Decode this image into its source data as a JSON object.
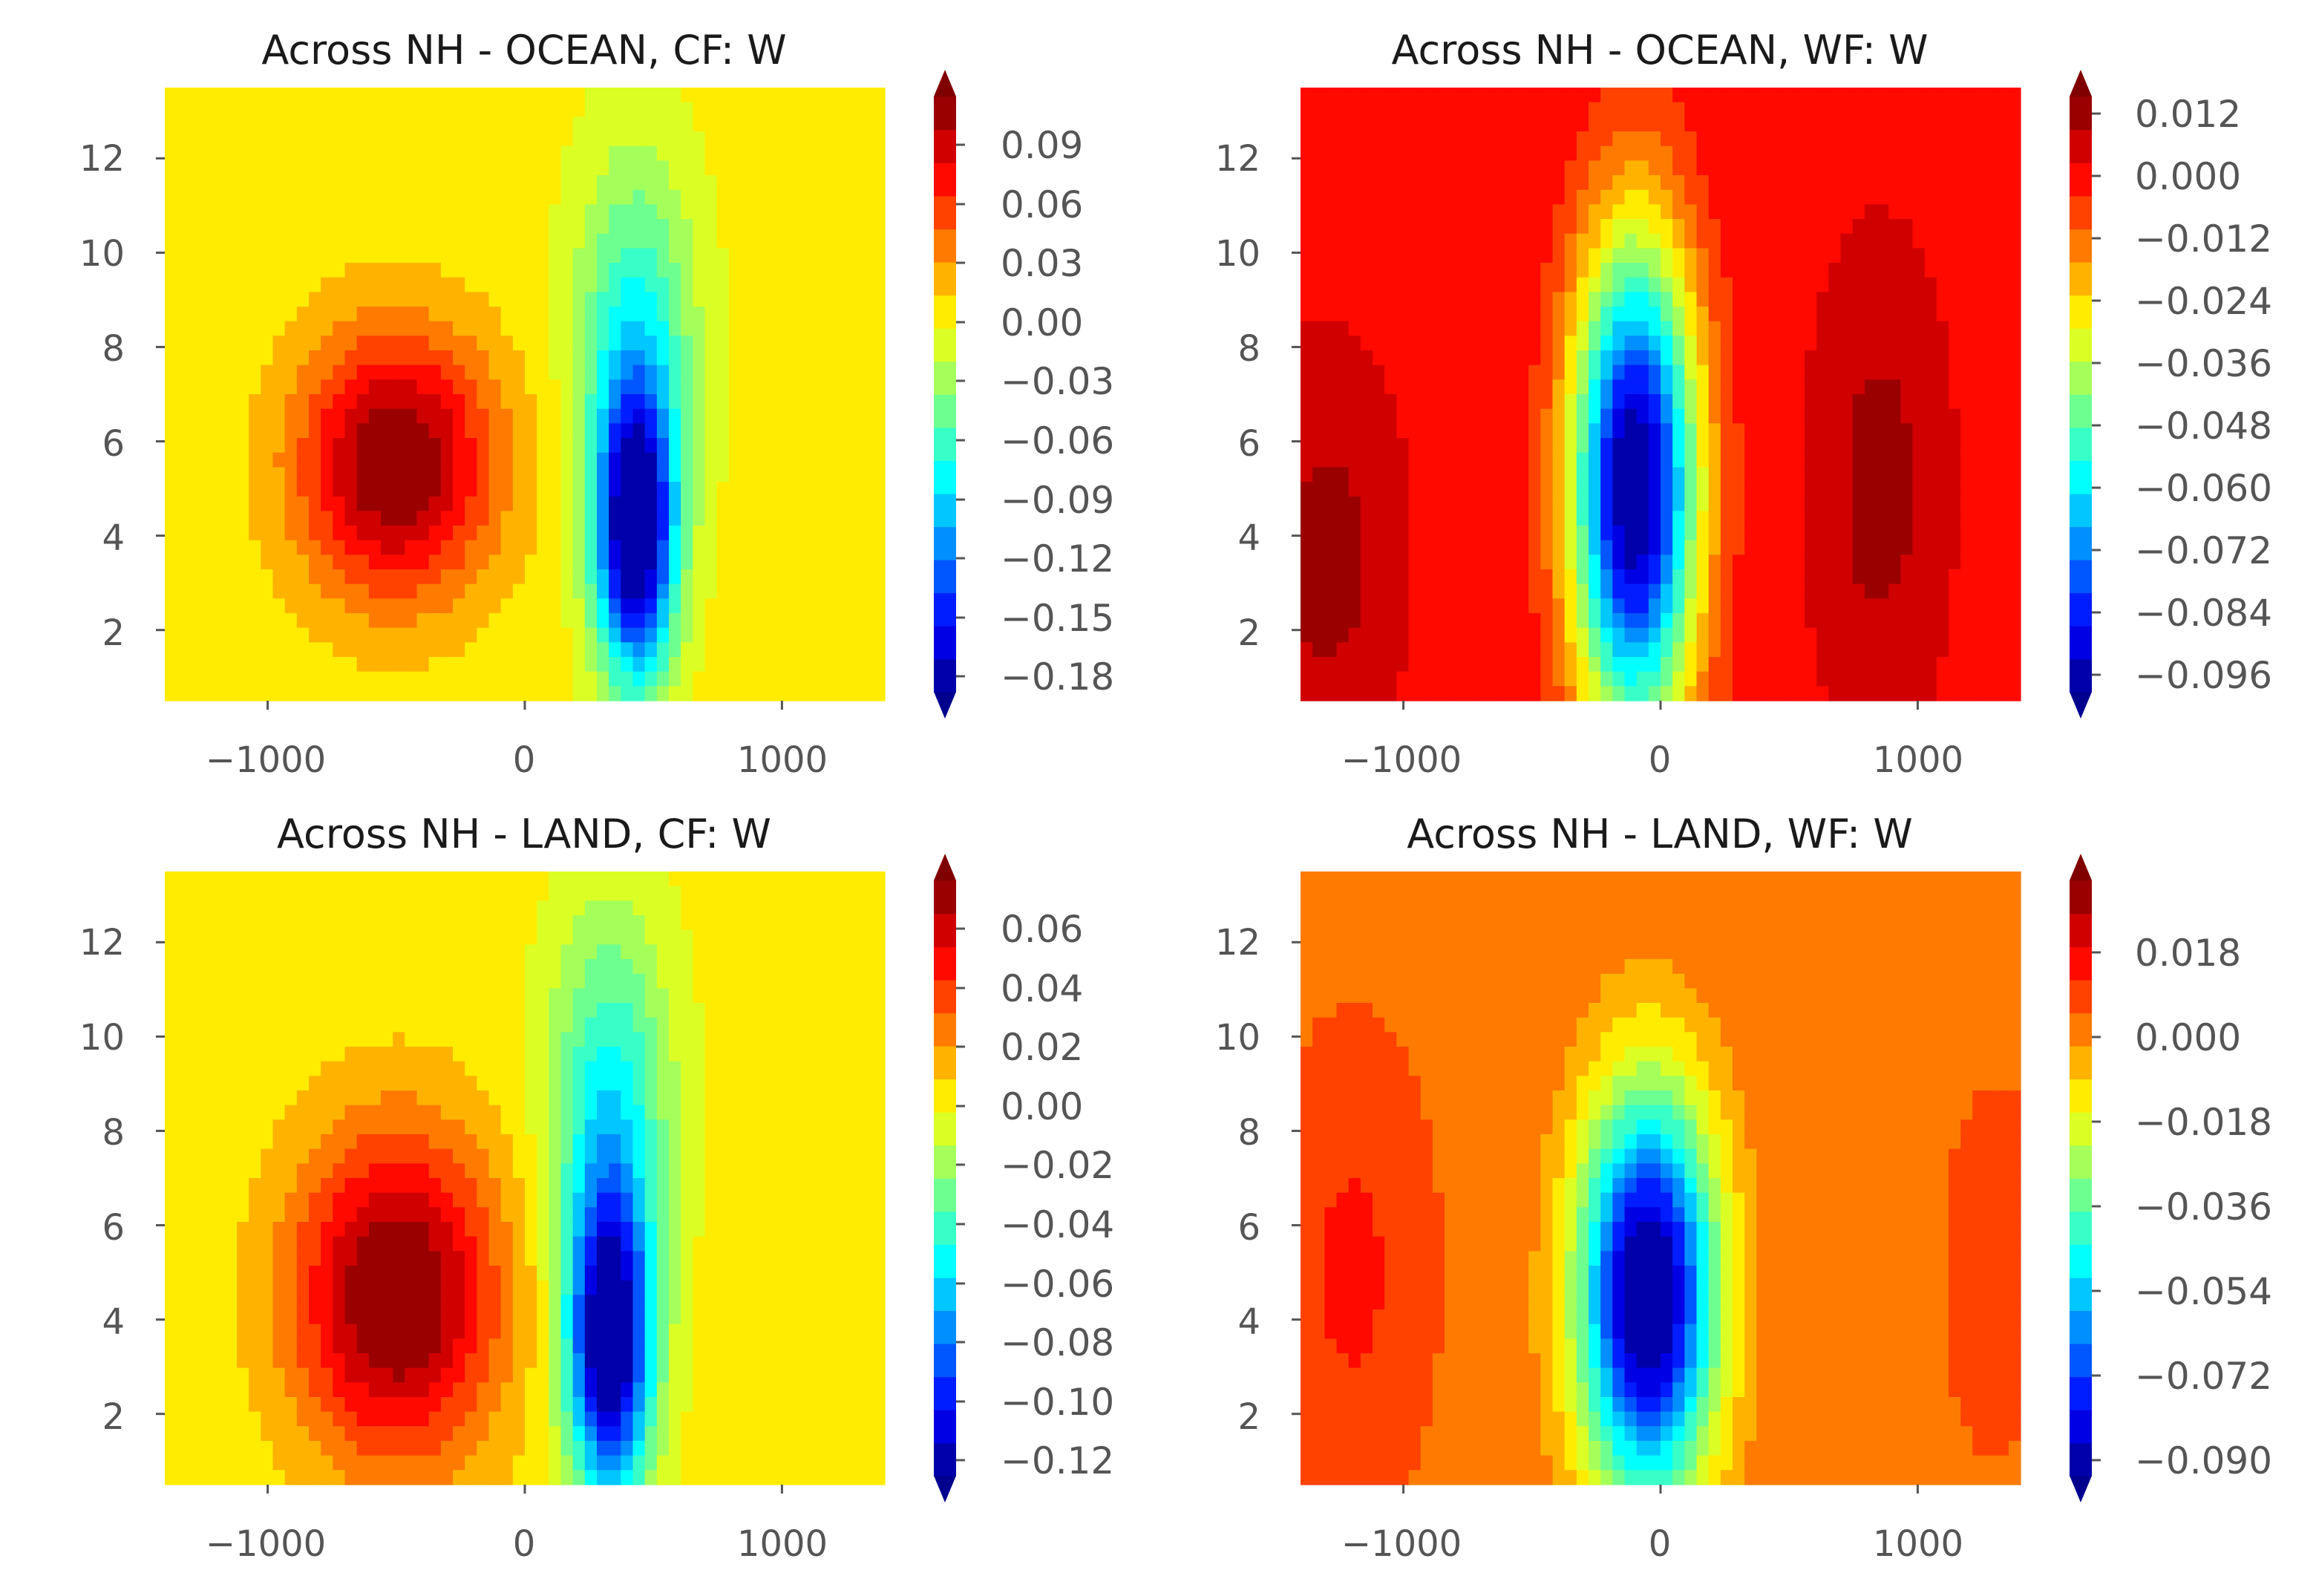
{
  "chart_data": [
    {
      "type": "heatmap",
      "title": "Across NH - OCEAN, CF: W",
      "xlabel": "",
      "ylabel": "",
      "x_ticks": [
        "−1000",
        "0",
        "1000"
      ],
      "y_ticks": [
        "2",
        "4",
        "6",
        "8",
        "10",
        "12"
      ],
      "xlim": [
        -1400,
        1400
      ],
      "ylim": [
        0.5,
        13.5
      ],
      "colorbar": {
        "ticks": [
          "0.09",
          "0.06",
          "0.03",
          "0.00",
          "−0.03",
          "−0.06",
          "−0.09",
          "−0.12",
          "−0.15",
          "−0.18"
        ],
        "min": -0.18,
        "max": 0.105,
        "extend": "both"
      },
      "field": {
        "features": [
          {
            "x": -500,
            "y": 5.5,
            "amp": 0.11,
            "sx": 380,
            "sy": 2.8
          },
          {
            "x": 430,
            "y": 4.0,
            "amp": -0.19,
            "sx": 150,
            "sy": 3.0
          },
          {
            "x": 430,
            "y": 8.0,
            "amp": -0.07,
            "sx": 230,
            "sy": 4.0
          }
        ],
        "background": 0.0
      }
    },
    {
      "type": "heatmap",
      "title": "Across NH - OCEAN, WF: W",
      "xlabel": "",
      "ylabel": "",
      "x_ticks": [
        "−1000",
        "0",
        "1000"
      ],
      "y_ticks": [
        "2",
        "4",
        "6",
        "8",
        "10",
        "12"
      ],
      "xlim": [
        -1400,
        1400
      ],
      "ylim": [
        0.5,
        13.5
      ],
      "colorbar": {
        "ticks": [
          "0.012",
          "0.000",
          "−0.012",
          "−0.024",
          "−0.036",
          "−0.048",
          "−0.060",
          "−0.072",
          "−0.084",
          "−0.096"
        ],
        "min": -0.102,
        "max": 0.018,
        "extend": "both"
      },
      "field": {
        "features": [
          {
            "x": -100,
            "y": 5.0,
            "amp": -0.11,
            "sx": 240,
            "sy": 5.2
          },
          {
            "x": 850,
            "y": 5.0,
            "amp": 0.012,
            "sx": 180,
            "sy": 3.5
          },
          {
            "x": -1300,
            "y": 3.5,
            "amp": 0.012,
            "sx": 200,
            "sy": 3.0
          }
        ],
        "background": 0.004
      }
    },
    {
      "type": "heatmap",
      "title": "Across NH - LAND, CF: W",
      "xlabel": "",
      "ylabel": "",
      "x_ticks": [
        "−1000",
        "0",
        "1000"
      ],
      "y_ticks": [
        "2",
        "4",
        "6",
        "8",
        "10",
        "12"
      ],
      "xlim": [
        -1400,
        1400
      ],
      "ylim": [
        0.5,
        13.5
      ],
      "colorbar": {
        "ticks": [
          "0.06",
          "0.04",
          "0.02",
          "0.00",
          "−0.02",
          "−0.04",
          "−0.06",
          "−0.08",
          "−0.10",
          "−0.12"
        ],
        "min": -0.12,
        "max": 0.07,
        "extend": "both"
      },
      "field": {
        "features": [
          {
            "x": -500,
            "y": 4.5,
            "amp": 0.075,
            "sx": 400,
            "sy": 3.5
          },
          {
            "x": 330,
            "y": 3.5,
            "amp": -0.13,
            "sx": 160,
            "sy": 3.2
          },
          {
            "x": 330,
            "y": 8.5,
            "amp": -0.05,
            "sx": 230,
            "sy": 4.0
          }
        ],
        "background": 0.0
      }
    },
    {
      "type": "heatmap",
      "title": "Across NH - LAND, WF: W",
      "xlabel": "",
      "ylabel": "",
      "x_ticks": [
        "−1000",
        "0",
        "1000"
      ],
      "y_ticks": [
        "2",
        "4",
        "6",
        "8",
        "10",
        "12"
      ],
      "xlim": [
        -1400,
        1400
      ],
      "ylim": [
        0.5,
        13.5
      ],
      "colorbar": {
        "ticks": [
          "0.018",
          "0.000",
          "−0.018",
          "−0.036",
          "−0.054",
          "−0.072",
          "−0.090"
        ],
        "min": -0.09,
        "max": 0.03,
        "extend": "both"
      },
      "field": {
        "features": [
          {
            "x": -50,
            "y": 4.5,
            "amp": -0.1,
            "sx": 260,
            "sy": 4.2
          },
          {
            "x": -1200,
            "y": 5.0,
            "amp": 0.01,
            "sx": 250,
            "sy": 4.0
          },
          {
            "x": 1300,
            "y": 5.0,
            "amp": 0.008,
            "sx": 150,
            "sy": 3.0
          }
        ],
        "background": 0.002
      }
    }
  ]
}
